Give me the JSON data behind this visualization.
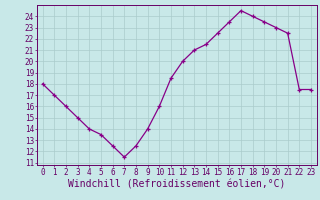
{
  "x": [
    0,
    1,
    2,
    3,
    4,
    5,
    6,
    7,
    8,
    9,
    10,
    11,
    12,
    13,
    14,
    15,
    16,
    17,
    18,
    19,
    20,
    21,
    22,
    23
  ],
  "y": [
    18,
    17,
    16,
    15,
    14,
    13.5,
    12.5,
    11.5,
    12.5,
    14,
    16,
    18.5,
    20,
    21,
    21.5,
    22.5,
    23.5,
    24.5,
    24,
    23.5,
    23,
    22.5,
    17.5,
    17.5
  ],
  "line_color": "#880088",
  "marker": "+",
  "bg_color": "#c8e8e8",
  "grid_color": "#aacccc",
  "xlabel": "Windchill (Refroidissement éolien,°C)",
  "xlim": [
    -0.5,
    23.5
  ],
  "ylim": [
    10.8,
    25.0
  ],
  "yticks": [
    11,
    12,
    13,
    14,
    15,
    16,
    17,
    18,
    19,
    20,
    21,
    22,
    23,
    24
  ],
  "xticks": [
    0,
    1,
    2,
    3,
    4,
    5,
    6,
    7,
    8,
    9,
    10,
    11,
    12,
    13,
    14,
    15,
    16,
    17,
    18,
    19,
    20,
    21,
    22,
    23
  ],
  "tick_color": "#660066",
  "tick_fontsize": 5.5,
  "xlabel_fontsize": 7.0,
  "line_width": 0.9,
  "marker_size": 3.5,
  "marker_edge_width": 0.9
}
